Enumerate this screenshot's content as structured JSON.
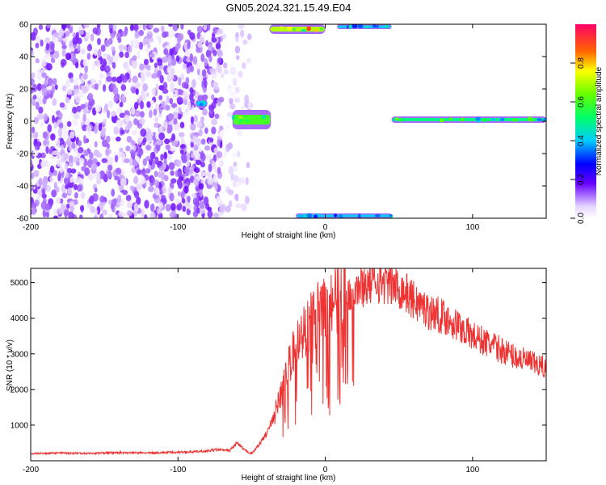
{
  "chart_data": [
    {
      "type": "heatmap",
      "title": "GN05.2024.321.15.49.E04",
      "xlabel": "Height of straight line (km)",
      "ylabel": "Frequency (Hz)",
      "xlim": [
        -200,
        150
      ],
      "ylim": [
        -60,
        60
      ],
      "xticks": [
        "-200",
        "-100",
        "0",
        "100"
      ],
      "yticks": [
        "-60",
        "-40",
        "-20",
        "0",
        "20",
        "40",
        "60"
      ],
      "colorbar": {
        "label": "Normalized spectral amplitude",
        "range": [
          0,
          1
        ],
        "ticks": [
          "0.0",
          "0.2",
          "0.4",
          "0.6",
          "0.8"
        ]
      },
      "regions": [
        {
          "x": [
            -200,
            -70
          ],
          "y": [
            -60,
            60
          ],
          "amplitude": 0.1,
          "kind": "speckled noise"
        },
        {
          "x": [
            -70,
            -50
          ],
          "y": [
            -60,
            60
          ],
          "amplitude": 0.05,
          "kind": "faint noise"
        },
        {
          "x": [
            -88,
            -80
          ],
          "y": [
            8,
            14
          ],
          "amplitude": 0.4,
          "kind": "streak"
        },
        {
          "x": [
            -63,
            -37
          ],
          "y": [
            -5,
            7
          ],
          "amplitude": 0.6,
          "kind": "streak"
        },
        {
          "x": [
            -38,
            0
          ],
          "y": [
            54,
            60
          ],
          "amplitude": 0.7,
          "kind": "band"
        },
        {
          "x": [
            8,
            45
          ],
          "y": [
            57,
            60
          ],
          "amplitude": 0.4,
          "kind": "band"
        },
        {
          "x": [
            -20,
            45
          ],
          "y": [
            -60,
            -57
          ],
          "amplitude": 0.4,
          "kind": "band"
        },
        {
          "x": [
            45,
            150
          ],
          "y": [
            -1,
            3
          ],
          "amplitude": 0.5,
          "kind": "band"
        }
      ]
    },
    {
      "type": "line",
      "xlabel": "Height of straight line (km)",
      "ylabel": "SNR (10 * v/v)",
      "xlim": [
        -200,
        150
      ],
      "ylim": [
        0,
        5400
      ],
      "xticks": [
        "-200",
        "-100",
        "0",
        "100"
      ],
      "yticks": [
        "1000",
        "2000",
        "3000",
        "4000",
        "5000"
      ],
      "color": "#ee3333",
      "series": [
        {
          "x": [
            -200,
            -180,
            -160,
            -140,
            -120,
            -100,
            -90,
            -80,
            -75,
            -70,
            -65,
            -60,
            -55,
            -50,
            -45,
            -40,
            -35,
            -30,
            -25,
            -20,
            -15,
            -10,
            -5,
            0,
            5,
            10,
            15,
            20,
            25,
            30,
            35,
            40,
            45,
            50,
            55,
            60,
            65,
            70,
            80,
            90,
            100,
            110,
            120,
            130,
            140,
            150
          ],
          "y": [
            200,
            220,
            210,
            230,
            220,
            240,
            250,
            270,
            310,
            300,
            280,
            500,
            300,
            200,
            450,
            750,
            1200,
            1900,
            2600,
            3200,
            3600,
            3900,
            4100,
            4200,
            4400,
            4600,
            4700,
            4800,
            4900,
            5000,
            5050,
            5000,
            4950,
            4850,
            4700,
            4500,
            4350,
            4200,
            4050,
            3800,
            3500,
            3300,
            3100,
            2900,
            2750,
            2600
          ]
        }
      ]
    }
  ]
}
